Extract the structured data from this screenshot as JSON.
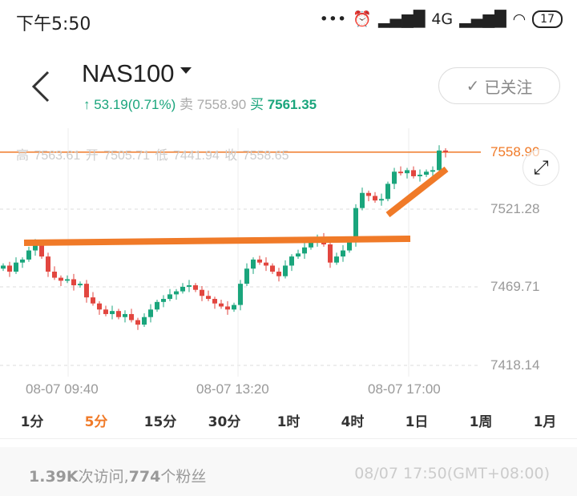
{
  "status_bar": {
    "time": "下午5:50",
    "network": "4G",
    "battery": "17"
  },
  "header": {
    "symbol": "NAS100",
    "change": "↑ 53.19(0.71%)",
    "sell_label": "卖",
    "sell": "7558.90",
    "buy_label": "买",
    "buy": "7561.35",
    "follow_label": "已关注"
  },
  "ohlc": {
    "high": "高 7563.61",
    "open": "开 7505.71",
    "low": "低 7441.94",
    "close": "收 7558.65"
  },
  "colors": {
    "up": "#1aa57c",
    "down": "#e2463f",
    "accent": "#f07a28"
  },
  "chart_data": {
    "type": "candlestick",
    "current_price": "7558.90",
    "y_ticks": [
      "7521.28",
      "7469.71",
      "7418.14"
    ],
    "x_ticks": [
      "08-07 09:40",
      "08-07 13:20",
      "08-07 17:00"
    ],
    "closes": [
      7484,
      7480,
      7486,
      7488,
      7494,
      7498,
      7490,
      7480,
      7476,
      7474,
      7475,
      7471,
      7472,
      7463,
      7459,
      7455,
      7452,
      7454,
      7450,
      7452,
      7448,
      7445,
      7450,
      7455,
      7460,
      7462,
      7465,
      7467,
      7470,
      7471,
      7468,
      7464,
      7462,
      7459,
      7457,
      7455,
      7458,
      7472,
      7482,
      7488,
      7486,
      7484,
      7480,
      7477,
      7484,
      7490,
      7492,
      7496,
      7500,
      7502,
      7498,
      7486,
      7490,
      7494,
      7500,
      7522,
      7532,
      7530,
      7527,
      7528,
      7538,
      7546,
      7545,
      7547,
      7543,
      7544,
      7546,
      7547,
      7560,
      7558.9
    ]
  },
  "periods": [
    {
      "label": "1分"
    },
    {
      "label": "5分",
      "active": true
    },
    {
      "label": "15分"
    },
    {
      "label": "30分"
    },
    {
      "label": "1时"
    },
    {
      "label": "4时"
    },
    {
      "label": "1日"
    },
    {
      "label": "1周"
    },
    {
      "label": "1月"
    }
  ],
  "footer": {
    "visits": "1.39K",
    "visits_label": "次访问,",
    "fans": "774",
    "fans_label": "个粉丝",
    "datetime": "08/07 17:50(GMT+08:00)"
  }
}
